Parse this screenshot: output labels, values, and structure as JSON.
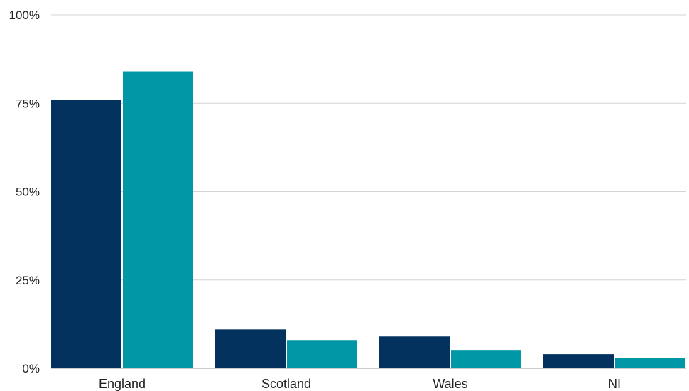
{
  "chart_data": {
    "type": "bar",
    "title": "",
    "xlabel": "",
    "ylabel": "",
    "categories": [
      "England",
      "Scotland",
      "Wales",
      "NI"
    ],
    "series": [
      {
        "color": "#03325f",
        "values": [
          76,
          11,
          9,
          4
        ]
      },
      {
        "color": "#0098a6",
        "values": [
          84,
          8,
          5,
          3
        ]
      }
    ],
    "ylim": [
      0,
      100
    ],
    "yticks": [
      0,
      25,
      50,
      75,
      100
    ],
    "ytick_labels": [
      "0%",
      "25%",
      "50%",
      "75%",
      "100%"
    ],
    "grid": true,
    "legend": "none"
  }
}
